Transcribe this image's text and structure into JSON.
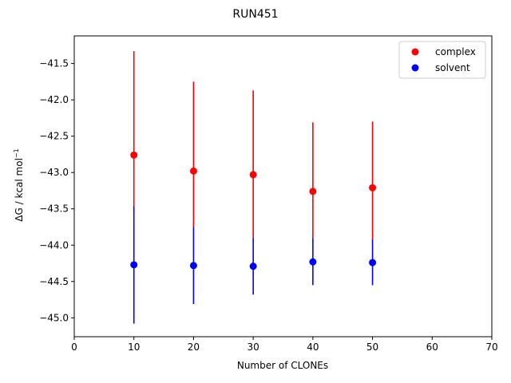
{
  "chart_data": {
    "type": "scatter",
    "title": "RUN451",
    "xlabel": "Number of CLONEs",
    "ylabel": "ΔG / kcal mol",
    "ylabel_sup": "−1",
    "xlim": [
      0,
      70
    ],
    "ylim": [
      -45.26,
      -41.12
    ],
    "xticks": [
      0,
      10,
      20,
      30,
      40,
      50,
      60,
      70
    ],
    "yticks": [
      -45.0,
      -44.5,
      -44.0,
      -43.5,
      -43.0,
      -42.5,
      -42.0,
      -41.5
    ],
    "legend_position": "top-right",
    "grid": false,
    "series": [
      {
        "name": "complex",
        "color": "#ff0000",
        "points": [
          {
            "x": 10,
            "y": -42.76,
            "err_low": -43.5,
            "err_high": -41.33
          },
          {
            "x": 20,
            "y": -42.98,
            "err_low": -43.75,
            "err_high": -41.75
          },
          {
            "x": 30,
            "y": -43.03,
            "err_low": -43.9,
            "err_high": -41.87
          },
          {
            "x": 40,
            "y": -43.26,
            "err_low": -43.9,
            "err_high": -42.31
          },
          {
            "x": 50,
            "y": -43.21,
            "err_low": -43.92,
            "err_high": -42.3
          }
        ]
      },
      {
        "name": "solvent",
        "color": "#0000ff",
        "points": [
          {
            "x": 10,
            "y": -44.27,
            "err_low": -45.08,
            "err_high": -43.47
          },
          {
            "x": 20,
            "y": -44.28,
            "err_low": -44.81,
            "err_high": -43.75
          },
          {
            "x": 30,
            "y": -44.29,
            "err_low": -44.68,
            "err_high": -43.9
          },
          {
            "x": 40,
            "y": -44.23,
            "err_low": -44.55,
            "err_high": -43.9
          },
          {
            "x": 50,
            "y": -44.24,
            "err_low": -44.55,
            "err_high": -43.92
          }
        ]
      }
    ]
  }
}
